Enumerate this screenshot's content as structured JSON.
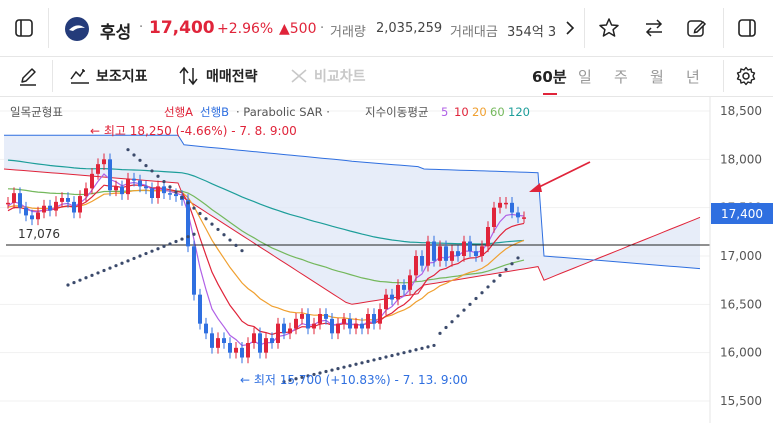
{
  "header": {
    "stock_name": "후성",
    "price": "17,400",
    "change_pct": "+2.96%",
    "change_abs": "▲500",
    "volume_label": "거래량",
    "volume": "2,035,259",
    "amount_label": "거래대금",
    "amount": "354억 3"
  },
  "toolbar": {
    "indicator_label": "보조지표",
    "trade_strategy_label": "매매전략",
    "compare_chart_label": "비교차트",
    "periods": [
      "60분",
      "일",
      "주",
      "월",
      "년"
    ],
    "active_period": "60분"
  },
  "chart": {
    "legend_title": "일목균형표",
    "legend_span_a": "선행A",
    "legend_span_b": "선행B",
    "legend_sar": "· Parabolic SAR ·",
    "legend_ema": "지수이동평균",
    "ema_periods": [
      "5",
      "10",
      "20",
      "60",
      "120"
    ],
    "ema_colors": [
      "#b061e6",
      "#e0243a",
      "#f0a030",
      "#74b85c",
      "#1d9e9a"
    ],
    "high_label": "← 최고 18,250 (-4.66%) - 7. 8. 9:00",
    "low_label": "← 최저 15,700 (+10.83%) - 7. 13. 9:00",
    "ref_price_label": "17,076",
    "current_price_label": "17,400",
    "y_ticks": [
      "18,500",
      "18,000",
      "17,500",
      "17,000",
      "16,500",
      "16,000",
      "15,500"
    ]
  },
  "colors": {
    "up": "#e0243a",
    "down": "#2f6fe0",
    "sar": "#3b4a6b",
    "cloud_fill": "#dde6f7"
  }
}
